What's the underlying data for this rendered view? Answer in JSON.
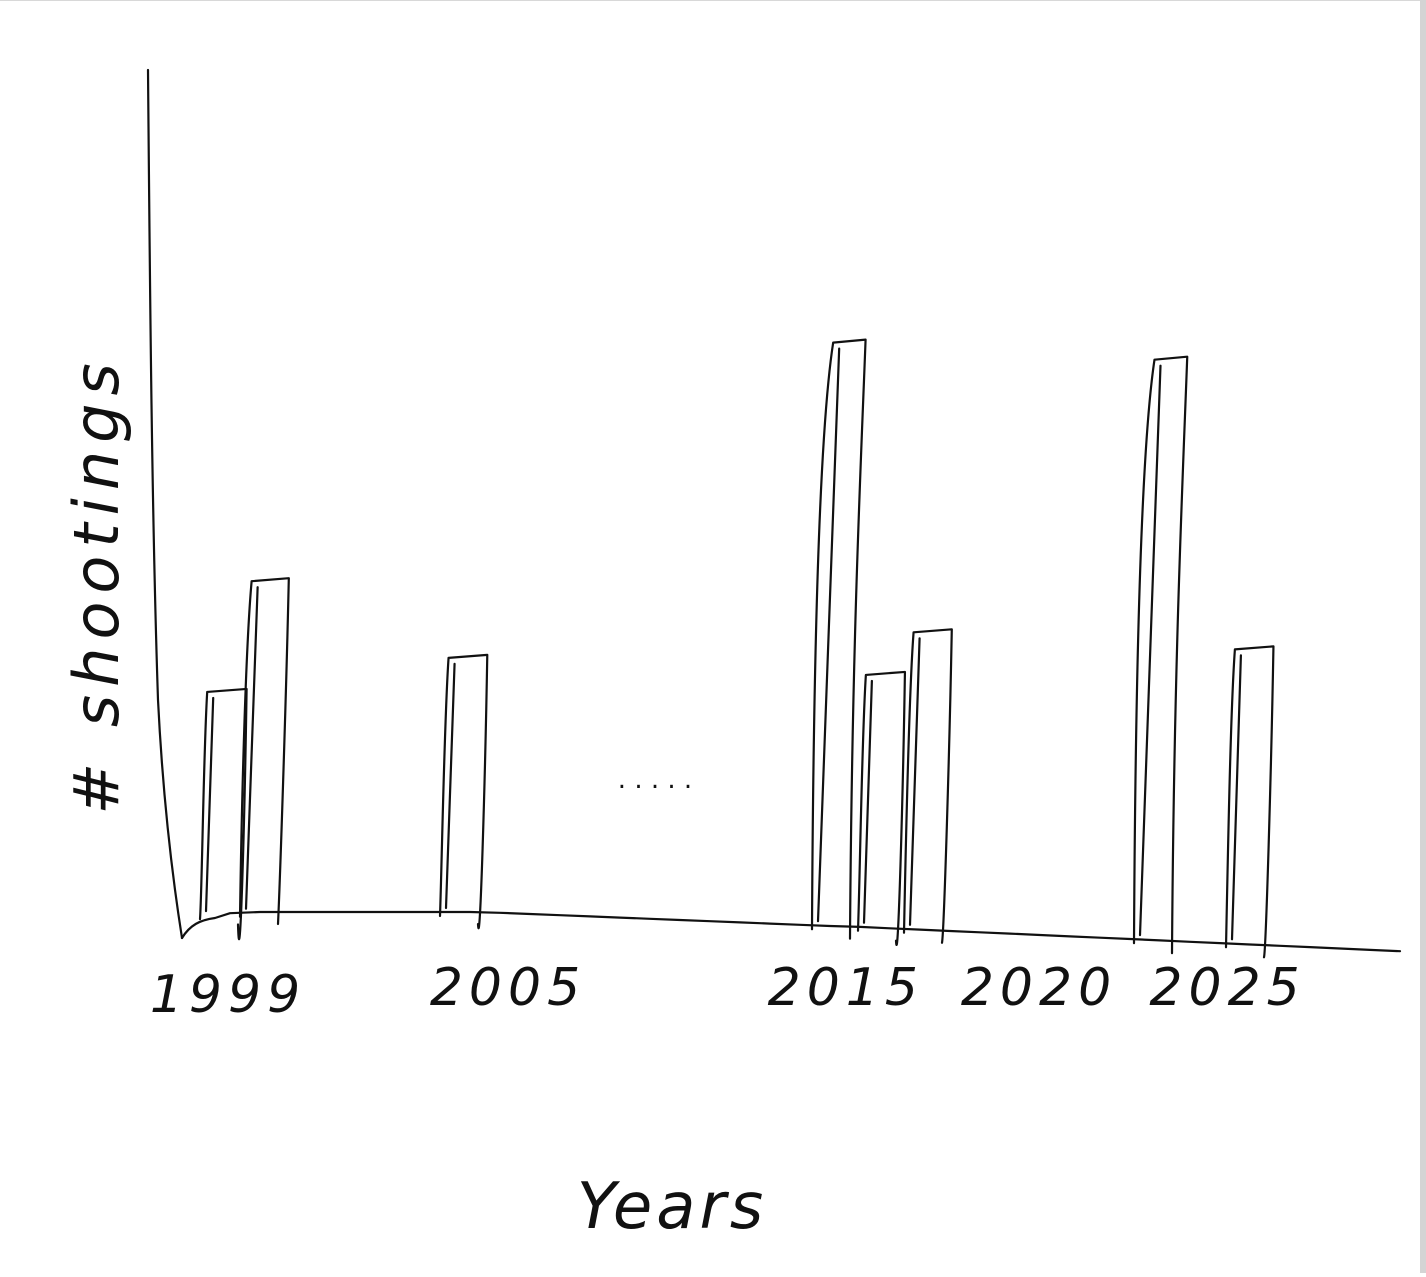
{
  "chart_data": {
    "type": "bar",
    "style": "hand-drawn sketch",
    "xlabel": "Years",
    "ylabel": "# shootings",
    "tick_labels": [
      "1999",
      "2005",
      "2015",
      "2020",
      "2025"
    ],
    "axis_break_marker": ". . . . .",
    "grid": false,
    "legend": "none",
    "y_ticks": "none",
    "ylim": [
      0,
      1
    ],
    "y_unit": "relative bar height (no numeric scale printed)",
    "bars": [
      {
        "year": 1999,
        "value": 0.27
      },
      {
        "year": 2000,
        "value": 0.4
      },
      {
        "year": 2005,
        "value": 0.31
      },
      {
        "year": 2015,
        "value": 0.68
      },
      {
        "year": 2016,
        "value": 0.29
      },
      {
        "year": 2017,
        "value": 0.34
      },
      {
        "year": 2022,
        "value": 0.66
      },
      {
        "year": 2024,
        "value": 0.32
      }
    ],
    "colors": {
      "ink": "#111111",
      "background": "#ffffff"
    }
  }
}
